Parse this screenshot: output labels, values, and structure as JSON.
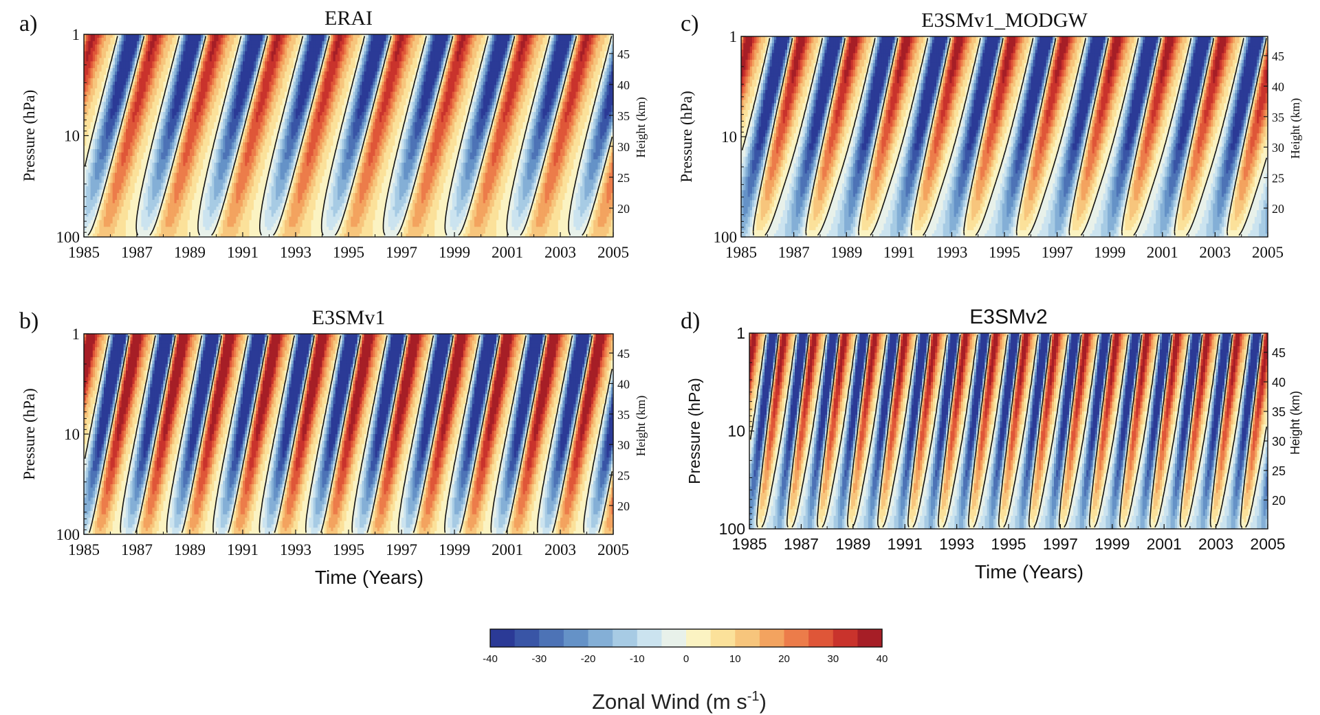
{
  "chart_data": {
    "type": "heatmap",
    "colorbar": {
      "ticks": [
        "-40",
        "-30",
        "-20",
        "-10",
        "0",
        "10",
        "20",
        "30",
        "40"
      ],
      "vmin": -40,
      "vmax": 40,
      "label_main": "Zonal Wind (m s",
      "label_sup": "-1",
      "label_end": ")",
      "colors": [
        "#2b3a96",
        "#3955a6",
        "#4d73b6",
        "#6592c7",
        "#84afd6",
        "#a7cbe4",
        "#cbe3ef",
        "#e8f1ea",
        "#fbf3c2",
        "#fbe19a",
        "#f7c57c",
        "#f3a35f",
        "#ec7c4a",
        "#df5638",
        "#c9332c",
        "#a61e26"
      ]
    },
    "panels": [
      {
        "letter": "a)",
        "title": "ERAI",
        "qbo_period_months": 28,
        "amplitude": 0.95,
        "bottom_value": 6,
        "xticks": [
          "1985",
          "1987",
          "1989",
          "1991",
          "1993",
          "1995",
          "1997",
          "1999",
          "2001",
          "2003",
          "2005"
        ],
        "yticks_left": [
          "1",
          "10",
          "100"
        ],
        "yticks_right": [
          "45",
          "40",
          "35",
          "30",
          "25",
          "20"
        ],
        "ylabel": "Pressure (hPa)",
        "ylabel_right": "Height (km)",
        "xlabel": ""
      },
      {
        "letter": "b)",
        "title": "E3SMv1",
        "qbo_period_months": 21,
        "amplitude": 1.25,
        "bottom_value": 4,
        "xticks": [
          "1985",
          "1987",
          "1989",
          "1991",
          "1993",
          "1995",
          "1997",
          "1999",
          "2001",
          "2003",
          "2005"
        ],
        "yticks_left": [
          "1",
          "10",
          "100"
        ],
        "yticks_right": [
          "45",
          "40",
          "35",
          "30",
          "25",
          "20"
        ],
        "ylabel": "Pressure (hPa)",
        "ylabel_right": "Height (km)",
        "xlabel": "Time (Years)"
      },
      {
        "letter": "c)",
        "title": "E3SMv1_MODGW",
        "qbo_period_months": 24,
        "amplitude": 1.05,
        "bottom_value": -6,
        "xticks": [
          "1985",
          "1987",
          "1989",
          "1991",
          "1993",
          "1995",
          "1997",
          "1999",
          "2001",
          "2003",
          "2005"
        ],
        "yticks_left": [
          "1",
          "10",
          "100"
        ],
        "yticks_right": [
          "45",
          "40",
          "35",
          "30",
          "25",
          "20"
        ],
        "ylabel": "Pressure (hPa)",
        "ylabel_right": "Height (km)",
        "xlabel": ""
      },
      {
        "letter": "d)",
        "title": "E3SMv2",
        "qbo_period_months": 14,
        "amplitude": 1.1,
        "bottom_value": -8,
        "xticks": [
          "1985",
          "1987",
          "1989",
          "1991",
          "1993",
          "1995",
          "1997",
          "1999",
          "2001",
          "2003",
          "2005"
        ],
        "yticks_left": [
          "1",
          "10",
          "100"
        ],
        "yticks_right": [
          "45",
          "40",
          "35",
          "30",
          "25",
          "20"
        ],
        "ylabel": "Pressure (hPa)",
        "ylabel_right": "Height (km)",
        "xlabel": "Time (Years)"
      }
    ]
  }
}
